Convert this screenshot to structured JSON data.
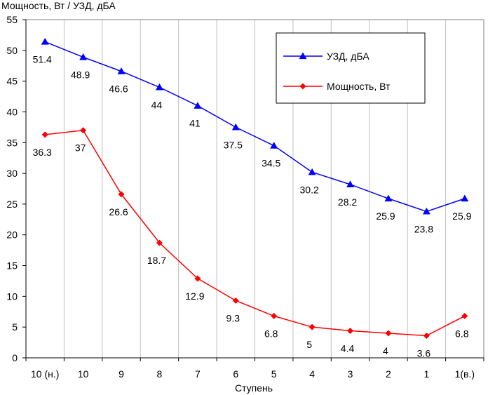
{
  "chart_data": {
    "type": "line",
    "title": "Мощность, Вт / УЗД, дБА",
    "xlabel": "Ступень",
    "ylabel": "",
    "ylim": [
      0,
      55
    ],
    "yticks": [
      0,
      5,
      10,
      15,
      20,
      25,
      30,
      35,
      40,
      45,
      50,
      55
    ],
    "categories": [
      "10 (н.)",
      "10",
      "9",
      "8",
      "7",
      "6",
      "5",
      "4",
      "3",
      "2",
      "1",
      "1(в.)"
    ],
    "grid": "vertical",
    "legend_position": "top-right",
    "series": [
      {
        "name": "УЗД, дБА",
        "color": "#0000ff",
        "marker": "triangle",
        "values": [
          51.4,
          48.9,
          46.6,
          44,
          41,
          37.5,
          34.5,
          30.2,
          28.2,
          25.9,
          23.8,
          25.9
        ],
        "labels": [
          "51.4",
          "48.9",
          "46.6",
          "44",
          "41",
          "37.5",
          "34.5",
          "30.2",
          "28.2",
          "25.9",
          "23.8",
          "25.9"
        ]
      },
      {
        "name": "Мощность, Вт",
        "color": "#ff0000",
        "marker": "diamond",
        "values": [
          36.3,
          37,
          26.6,
          18.7,
          12.9,
          9.3,
          6.8,
          5,
          4.4,
          4,
          3.6,
          6.8
        ],
        "labels": [
          "36.3",
          "37",
          "26.6",
          "18.7",
          "12.9",
          "9.3",
          "6.8",
          "5",
          "4.4",
          "4",
          "3.6",
          "6.8"
        ]
      }
    ]
  }
}
